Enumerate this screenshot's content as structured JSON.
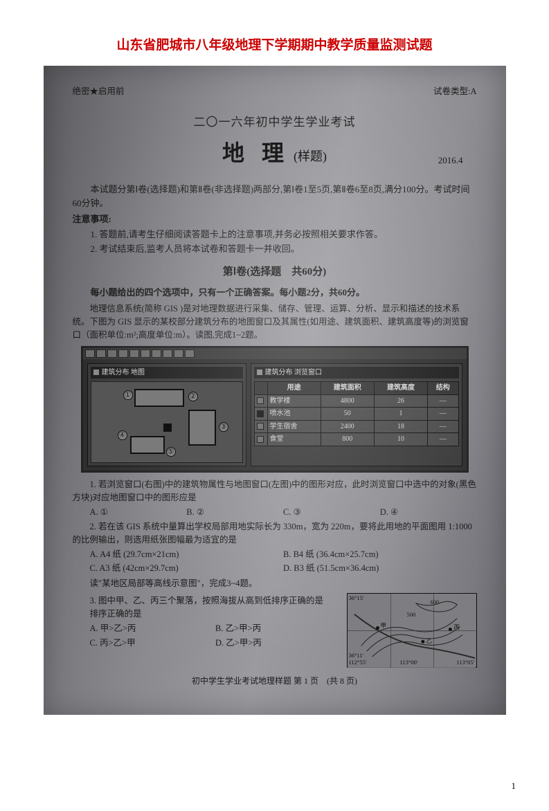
{
  "doc_title": "山东省肥城市八年级地理下学期期中教学质量监测试题",
  "top_left": "绝密★启用前",
  "top_right": "试卷类型:A",
  "exam_year": "二〇一六年初中学生学业考试",
  "subject": "地 理",
  "sample": "(样题)",
  "date": "2016.4",
  "intro1": "本试题分第Ⅰ卷(选择题)和第Ⅱ卷(非选择题)两部分,第Ⅰ卷1至5页,第Ⅱ卷6至8页,满分100分。考试时间60分钟。",
  "notice_title": "注意事项:",
  "notice1": "1. 答题前,请考生仔细阅读答题卡上的注意事项,并务必按照相关要求作答。",
  "notice2": "2. 考试结束后,监考人员将本试卷和答题卡一并收回。",
  "section1_title": "第Ⅰ卷(选择题　共60分)",
  "section1_desc": "每小题给出的四个选项中，只有一个正确答案。每小题2分，共60分。",
  "passage1": "地理信息系统(简称 GIS )是对地理数据进行采集、储存、管理、运算、分析、显示和描述的技术系统。下图为 GIS 显示的某校部分建筑分布的地图窗口及其属性(如用途、建筑面积、建筑高度等)的浏览窗口（面积单位:m²;高度单位:m）。读图,完成1~2题。",
  "gis": {
    "left_title": "建筑分布  地图",
    "right_title": "建筑分布  浏览窗口",
    "labels": {
      "b1": "①",
      "b2": "②",
      "b3": "③",
      "b4": "④",
      "b5": "⑤"
    },
    "columns": [
      "用途",
      "建筑面积",
      "建筑高度",
      "结构"
    ],
    "rows": [
      {
        "mark": false,
        "name": "教学楼",
        "area": "4800",
        "height": "26",
        "struct": "—"
      },
      {
        "mark": true,
        "name": "喷水池",
        "area": "50",
        "height": "1",
        "struct": "—"
      },
      {
        "mark": false,
        "name": "学生宿舍",
        "area": "2400",
        "height": "18",
        "struct": "—"
      },
      {
        "mark": false,
        "name": "食堂",
        "area": "800",
        "height": "10",
        "struct": "—"
      }
    ]
  },
  "q1": "1. 若浏览窗口(右图)中的建筑物属性与地图窗口(左图)中的图形对应，此时浏览窗口中选中的对象(黑色方块)对应地图窗口中的图形应是",
  "q1_opts": {
    "A": "A. ①",
    "B": "B. ②",
    "C": "C. ③",
    "D": "D. ④"
  },
  "q2": "2. 若在该 GIS 系统中量算出学校局部用地实际长为 330m，宽为 220m，要将此用地的平面图用 1:1000 的比例输出，则选用纸张图幅最为适宜的是",
  "q2_opts": {
    "A": "A. A4 纸 (29.7cm×21cm)",
    "B": "B. B4 纸 (36.4cm×25.7cm)",
    "C": "C. A3 纸 (42cm×29.7cm)",
    "D": "D. B3 纸 (51.5cm×36.4cm)"
  },
  "passage2": "读\"某地区局部等高线示意图\"，完成3~4题。",
  "q3": "3. 图中甲、乙、丙三个聚落，按照海拔从高到低排序正确的是",
  "q3_opts": {
    "A": "A. 甲>乙>丙",
    "B": "B. 乙>甲>丙",
    "C": "C. 丙>乙>甲",
    "D": "D. 乙>甲>丙"
  },
  "contour": {
    "lat_top": "36°15′",
    "lat_bot": "36°11′",
    "lon_l": "112°55′",
    "lon_m": "113°00′",
    "lon_r": "113°05′",
    "pts": {
      "jia": "甲",
      "yi": "乙",
      "bing": "丙"
    },
    "elev": [
      "500",
      "600"
    ]
  },
  "footer": "初中学生学业考试地理样题  第 1 页　(共 8 页)",
  "page_num": "1"
}
